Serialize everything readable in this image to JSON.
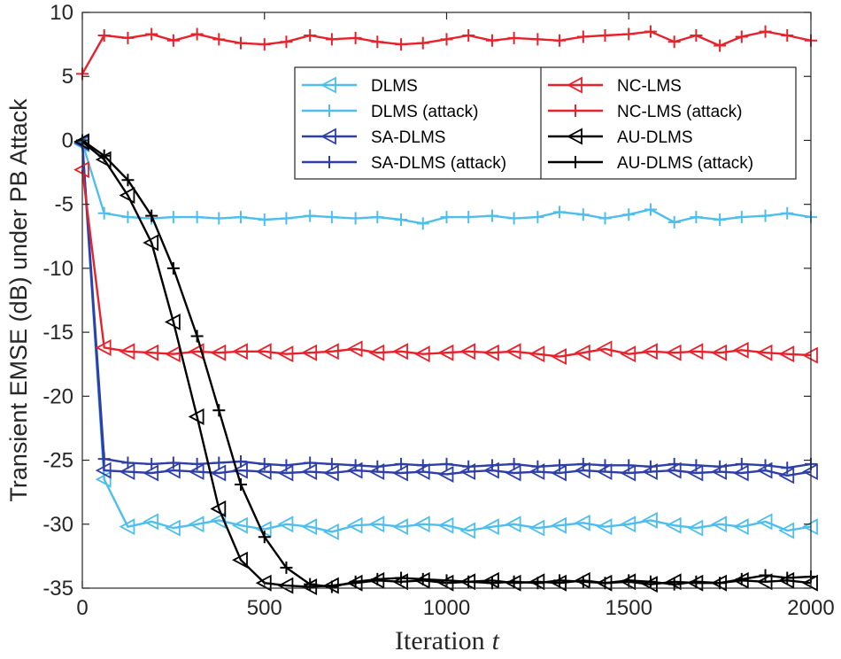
{
  "chart_data": {
    "type": "line",
    "title": "",
    "xlabel": "Iteration",
    "xlabel_var": "t",
    "ylabel": "Transient EMSE (dB) under PB Attack",
    "xlim": [
      0,
      2000
    ],
    "ylim": [
      -35,
      10
    ],
    "xticks": [
      0,
      500,
      1000,
      1500,
      2000
    ],
    "yticks": [
      10,
      5,
      0,
      -5,
      -10,
      -15,
      -20,
      -25,
      -30,
      -35
    ],
    "grid": false,
    "legend_position": "top-right",
    "series": [
      {
        "name": "DLMS",
        "color": "#4dbeee",
        "marker": "triangle-left",
        "x": [
          0,
          60,
          125,
          190,
          250,
          315,
          375,
          435,
          500,
          560,
          625,
          685,
          750,
          810,
          875,
          935,
          1000,
          1060,
          1125,
          1185,
          1250,
          1310,
          1375,
          1435,
          1500,
          1560,
          1625,
          1685,
          1750,
          1810,
          1875,
          1935,
          2000
        ],
        "y": [
          -0.3,
          -26.5,
          -30.2,
          -29.8,
          -30.3,
          -30.0,
          -29.7,
          -30.1,
          -30.4,
          -30.0,
          -30.2,
          -30.6,
          -30.1,
          -30.0,
          -30.2,
          -30.0,
          -30.1,
          -30.5,
          -30.2,
          -30.0,
          -30.3,
          -30.1,
          -29.9,
          -30.2,
          -30.0,
          -29.7,
          -30.1,
          -30.3,
          -30.0,
          -30.2,
          -29.8,
          -30.5,
          -30.2
        ]
      },
      {
        "name": "DLMS (attack)",
        "color": "#4dbeee",
        "marker": "plus",
        "x": [
          0,
          60,
          125,
          190,
          250,
          315,
          375,
          435,
          500,
          560,
          625,
          685,
          750,
          810,
          875,
          935,
          1000,
          1060,
          1125,
          1185,
          1250,
          1310,
          1375,
          1435,
          1500,
          1560,
          1625,
          1685,
          1750,
          1810,
          1875,
          1935,
          2000
        ],
        "y": [
          -0.2,
          -5.7,
          -6.0,
          -6.1,
          -6.0,
          -6.0,
          -6.1,
          -6.0,
          -6.2,
          -6.1,
          -5.9,
          -6.0,
          -6.1,
          -6.0,
          -6.2,
          -6.5,
          -6.0,
          -6.0,
          -5.9,
          -6.1,
          -6.0,
          -5.6,
          -5.8,
          -6.1,
          -5.8,
          -5.4,
          -6.4,
          -6.0,
          -6.2,
          -6.0,
          -5.9,
          -5.7,
          -6.0
        ]
      },
      {
        "name": "SA-DLMS",
        "color": "#2e3fa8",
        "marker": "triangle-left",
        "x": [
          0,
          60,
          125,
          190,
          250,
          315,
          375,
          435,
          500,
          560,
          625,
          685,
          750,
          810,
          875,
          935,
          1000,
          1060,
          1125,
          1185,
          1250,
          1310,
          1375,
          1435,
          1500,
          1560,
          1625,
          1685,
          1750,
          1810,
          1875,
          1935,
          2000
        ],
        "y": [
          -0.2,
          -25.8,
          -25.9,
          -26.0,
          -25.8,
          -25.9,
          -26.0,
          -25.8,
          -25.9,
          -26.0,
          -25.9,
          -26.0,
          -25.8,
          -25.9,
          -26.0,
          -25.9,
          -26.1,
          -25.9,
          -25.8,
          -26.0,
          -25.9,
          -26.0,
          -25.8,
          -25.9,
          -26.0,
          -25.9,
          -25.8,
          -26.0,
          -25.9,
          -26.0,
          -25.8,
          -26.2,
          -25.9
        ]
      },
      {
        "name": "SA-DLMS (attack)",
        "color": "#2e3fa8",
        "marker": "plus",
        "x": [
          0,
          60,
          125,
          190,
          250,
          315,
          375,
          435,
          500,
          560,
          625,
          685,
          750,
          810,
          875,
          935,
          1000,
          1060,
          1125,
          1185,
          1250,
          1310,
          1375,
          1435,
          1500,
          1560,
          1625,
          1685,
          1750,
          1810,
          1875,
          1935,
          2000
        ],
        "y": [
          -0.2,
          -24.9,
          -25.2,
          -25.3,
          -25.2,
          -25.3,
          -25.2,
          -25.1,
          -25.3,
          -25.4,
          -25.2,
          -25.3,
          -25.4,
          -25.5,
          -25.3,
          -25.4,
          -25.3,
          -25.5,
          -25.4,
          -25.3,
          -25.5,
          -25.4,
          -25.3,
          -25.4,
          -25.4,
          -25.5,
          -25.3,
          -25.4,
          -25.5,
          -25.3,
          -25.4,
          -25.6,
          -25.3
        ]
      },
      {
        "name": "NC-LMS",
        "color": "#e8212b",
        "marker": "triangle-left",
        "x": [
          0,
          60,
          125,
          190,
          250,
          315,
          375,
          435,
          500,
          560,
          625,
          685,
          750,
          810,
          875,
          935,
          1000,
          1060,
          1125,
          1185,
          1250,
          1310,
          1375,
          1435,
          1500,
          1560,
          1625,
          1685,
          1750,
          1810,
          1875,
          1935,
          2000
        ],
        "y": [
          -2.3,
          -16.2,
          -16.5,
          -16.6,
          -16.7,
          -16.5,
          -16.6,
          -16.5,
          -16.5,
          -16.7,
          -16.6,
          -16.5,
          -16.3,
          -16.6,
          -16.5,
          -16.7,
          -16.6,
          -16.5,
          -16.6,
          -16.5,
          -16.7,
          -16.9,
          -16.6,
          -16.3,
          -16.7,
          -16.5,
          -16.6,
          -16.5,
          -16.6,
          -16.4,
          -16.6,
          -16.7,
          -16.8
        ]
      },
      {
        "name": "NC-LMS (attack)",
        "color": "#e8212b",
        "marker": "plus",
        "x": [
          0,
          60,
          125,
          190,
          250,
          315,
          375,
          435,
          500,
          560,
          625,
          685,
          750,
          810,
          875,
          935,
          1000,
          1060,
          1125,
          1185,
          1250,
          1310,
          1375,
          1435,
          1500,
          1560,
          1625,
          1685,
          1750,
          1810,
          1875,
          1935,
          2000
        ],
        "y": [
          5.2,
          8.2,
          8.0,
          8.3,
          7.8,
          8.3,
          7.9,
          7.6,
          7.5,
          7.7,
          8.2,
          7.9,
          8.0,
          7.7,
          7.5,
          7.6,
          7.9,
          8.2,
          7.8,
          8.0,
          7.9,
          7.8,
          8.1,
          8.2,
          8.3,
          8.5,
          7.7,
          8.2,
          7.4,
          8.1,
          8.5,
          8.2,
          7.8
        ]
      },
      {
        "name": "AU-DLMS",
        "color": "#000000",
        "marker": "triangle-left",
        "x": [
          0,
          60,
          125,
          190,
          250,
          315,
          375,
          435,
          500,
          560,
          625,
          685,
          750,
          810,
          875,
          935,
          1000,
          1060,
          1125,
          1185,
          1250,
          1310,
          1375,
          1435,
          1500,
          1560,
          1625,
          1685,
          1750,
          1810,
          1875,
          1935,
          2000
        ],
        "y": [
          -0.1,
          -1.5,
          -4.3,
          -8.0,
          -14.2,
          -21.6,
          -28.8,
          -32.8,
          -34.6,
          -34.8,
          -34.9,
          -34.8,
          -34.6,
          -34.4,
          -34.5,
          -34.4,
          -34.6,
          -34.5,
          -34.4,
          -34.6,
          -34.5,
          -34.6,
          -34.4,
          -34.6,
          -34.5,
          -34.7,
          -34.5,
          -34.6,
          -34.6,
          -34.4,
          -34.5,
          -34.4,
          -34.6
        ]
      },
      {
        "name": "AU-DLMS (attack)",
        "color": "#000000",
        "marker": "plus",
        "x": [
          0,
          60,
          125,
          190,
          250,
          315,
          375,
          435,
          500,
          560,
          625,
          685,
          750,
          810,
          875,
          935,
          1000,
          1060,
          1125,
          1185,
          1250,
          1310,
          1375,
          1435,
          1500,
          1560,
          1625,
          1685,
          1750,
          1810,
          1875,
          1935,
          2000
        ],
        "y": [
          0.0,
          -1.2,
          -3.1,
          -5.9,
          -10.0,
          -15.3,
          -21.1,
          -26.9,
          -31.0,
          -33.4,
          -34.7,
          -34.9,
          -34.5,
          -34.3,
          -34.2,
          -34.3,
          -34.4,
          -34.5,
          -34.6,
          -34.5,
          -34.6,
          -34.4,
          -34.5,
          -34.6,
          -34.4,
          -34.5,
          -34.7,
          -34.5,
          -34.6,
          -34.3,
          -34.0,
          -34.2,
          -34.1
        ]
      }
    ],
    "legend_order": [
      0,
      4,
      1,
      5,
      2,
      6,
      3,
      7
    ]
  }
}
